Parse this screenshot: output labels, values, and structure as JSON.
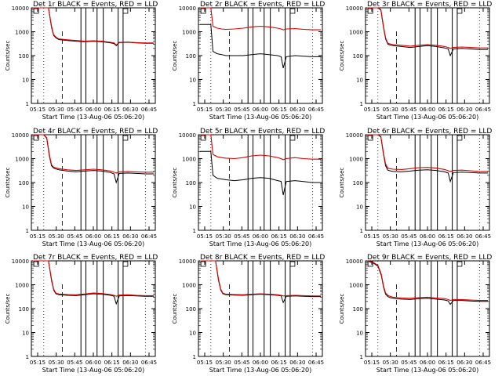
{
  "colors": {
    "events": "#000000",
    "lld": "#dd0000",
    "background": "#ffffff"
  },
  "ylabel": "Counts/sec",
  "xlabel": "Start Time (13-Aug-06 05:06:20)",
  "chart_data": [
    {
      "type": "line",
      "title": "Det 1r BLACK = Events, RED = LLD",
      "xlabel": "Start Time (13-Aug-06 05:06:20)",
      "ylabel": "Counts/sec",
      "yscale": "log",
      "ylim": [
        1,
        10000
      ],
      "xtick_labels": [
        "05:15",
        "05:30",
        "05:45",
        "06:00",
        "06:15",
        "06:30",
        "06:45"
      ],
      "ytick_labels": [
        "1",
        "10",
        "100",
        "1000",
        "10000"
      ],
      "series": [
        {
          "name": "Events",
          "x": [
            4.0,
            7.2,
            7.6,
            8.3,
            8.8,
            9.3,
            10.0,
            12.0,
            14.0,
            16.0,
            18.0,
            20.0,
            22.0,
            22.8,
            23.3,
            24.0,
            26.0,
            28.0,
            30.0,
            32.0
          ],
          "y": [
            10000,
            10000,
            10000,
            1500,
            700,
            560,
            470,
            430,
            400,
            380,
            400,
            380,
            340,
            320,
            260,
            350,
            360,
            340,
            330,
            330
          ]
        },
        {
          "name": "LLD",
          "x": [
            4.0,
            7.2,
            7.6,
            8.3,
            8.8,
            9.3,
            10.0,
            12.0,
            14.0,
            16.0,
            18.0,
            20.0,
            22.0,
            22.8,
            23.3,
            24.0,
            26.0,
            28.0,
            30.0,
            32.0
          ],
          "y": [
            10000,
            10000,
            10000,
            1700,
            750,
            600,
            500,
            460,
            430,
            400,
            420,
            400,
            360,
            340,
            280,
            360,
            370,
            350,
            340,
            340
          ]
        }
      ]
    },
    {
      "type": "line",
      "title": "Det 2r BLACK = Events, RED = LLD",
      "xlabel": "Start Time (13-Aug-06 05:06:20)",
      "ylabel": "Counts/sec",
      "yscale": "log",
      "ylim": [
        1,
        10000
      ],
      "xtick_labels": [
        "05:15",
        "05:30",
        "05:45",
        "06:00",
        "06:15",
        "06:30",
        "06:45"
      ],
      "ytick_labels": [
        "1",
        "10",
        "100",
        "1000",
        "10000"
      ],
      "series": [
        {
          "name": "Events",
          "x": [
            4.0,
            6.5,
            7.0,
            8.0,
            9.0,
            10.0,
            12.0,
            14.0,
            16.0,
            18.0,
            20.0,
            22.0,
            22.8,
            23.3,
            24.0,
            26.0,
            28.0,
            30.0,
            32.0
          ],
          "y": [
            2000,
            2000,
            150,
            120,
            110,
            100,
            100,
            100,
            110,
            120,
            110,
            100,
            90,
            30,
            90,
            100,
            95,
            90,
            90
          ]
        },
        {
          "name": "LLD",
          "x": [
            4.0,
            6.5,
            7.0,
            8.0,
            9.0,
            10.0,
            12.0,
            14.0,
            16.0,
            18.0,
            20.0,
            22.0,
            22.8,
            23.3,
            24.0,
            26.0,
            28.0,
            30.0,
            32.0
          ],
          "y": [
            10000,
            10000,
            1700,
            1400,
            1300,
            1250,
            1300,
            1400,
            1600,
            1700,
            1600,
            1400,
            1300,
            1200,
            1300,
            1350,
            1250,
            1200,
            1200
          ]
        }
      ]
    },
    {
      "type": "line",
      "title": "Det 3r BLACK = Events, RED = LLD",
      "xlabel": "Start Time (13-Aug-06 05:06:20)",
      "ylabel": "Counts/sec",
      "yscale": "log",
      "ylim": [
        1,
        10000
      ],
      "xtick_labels": [
        "05:15",
        "05:30",
        "05:45",
        "06:00",
        "06:15",
        "06:30",
        "06:45"
      ],
      "ytick_labels": [
        "1",
        "10",
        "100",
        "1000",
        "10000"
      ],
      "series": [
        {
          "name": "Events",
          "x": [
            4.0,
            6.5,
            7.2,
            7.8,
            8.3,
            8.8,
            9.3,
            10.0,
            12.0,
            14.0,
            16.0,
            18.0,
            20.0,
            22.0,
            22.8,
            23.3,
            24.0,
            26.0,
            28.0,
            30.0,
            32.0
          ],
          "y": [
            10000,
            10000,
            8000,
            1500,
            500,
            300,
            280,
            260,
            240,
            220,
            240,
            260,
            240,
            210,
            190,
            100,
            190,
            200,
            190,
            180,
            180
          ]
        },
        {
          "name": "LLD",
          "x": [
            4.0,
            6.5,
            7.2,
            7.8,
            8.3,
            8.8,
            9.3,
            10.0,
            12.0,
            14.0,
            16.0,
            18.0,
            20.0,
            22.0,
            22.8,
            23.3,
            24.0,
            26.0,
            28.0,
            30.0,
            32.0
          ],
          "y": [
            10000,
            10000,
            8500,
            1700,
            550,
            330,
            310,
            290,
            270,
            250,
            270,
            290,
            270,
            240,
            220,
            200,
            220,
            230,
            220,
            210,
            210
          ]
        }
      ]
    },
    {
      "type": "line",
      "title": "Det 4r BLACK = Events, RED = LLD",
      "xlabel": "Start Time (13-Aug-06 05:06:20)",
      "ylabel": "Counts/sec",
      "yscale": "log",
      "ylim": [
        1,
        10000
      ],
      "xtick_labels": [
        "05:15",
        "05:30",
        "05:45",
        "06:00",
        "06:15",
        "06:30",
        "06:45"
      ],
      "ytick_labels": [
        "1",
        "10",
        "100",
        "1000",
        "10000"
      ],
      "series": [
        {
          "name": "Events",
          "x": [
            4.0,
            6.5,
            7.2,
            7.8,
            8.3,
            8.8,
            9.3,
            10.0,
            12.0,
            14.0,
            16.0,
            18.0,
            20.0,
            22.0,
            22.8,
            23.3,
            24.0,
            26.0,
            28.0,
            30.0,
            32.0
          ],
          "y": [
            10000,
            10000,
            7000,
            1300,
            500,
            400,
            370,
            340,
            300,
            280,
            300,
            320,
            300,
            260,
            230,
            100,
            240,
            250,
            240,
            230,
            230
          ]
        },
        {
          "name": "LLD",
          "x": [
            4.0,
            6.5,
            7.2,
            7.8,
            8.3,
            8.8,
            9.3,
            10.0,
            12.0,
            14.0,
            16.0,
            18.0,
            20.0,
            22.0,
            22.8,
            23.3,
            24.0,
            26.0,
            28.0,
            30.0,
            32.0
          ],
          "y": [
            10000,
            10000,
            7500,
            1500,
            550,
            440,
            410,
            380,
            340,
            320,
            340,
            360,
            340,
            300,
            270,
            250,
            280,
            290,
            280,
            270,
            270
          ]
        }
      ]
    },
    {
      "type": "line",
      "title": "Det 5r BLACK = Events, RED = LLD",
      "xlabel": "Start Time (13-Aug-06 05:06:20)",
      "ylabel": "Counts/sec",
      "yscale": "log",
      "ylim": [
        1,
        10000
      ],
      "xtick_labels": [
        "05:15",
        "05:30",
        "05:45",
        "06:00",
        "06:15",
        "06:30",
        "06:45"
      ],
      "ytick_labels": [
        "1",
        "10",
        "100",
        "1000",
        "10000"
      ],
      "series": [
        {
          "name": "Events",
          "x": [
            4.0,
            6.5,
            7.0,
            8.0,
            9.0,
            10.0,
            12.0,
            14.0,
            16.0,
            18.0,
            20.0,
            22.0,
            22.8,
            23.3,
            24.0,
            26.0,
            28.0,
            30.0,
            32.0
          ],
          "y": [
            2000,
            2000,
            200,
            150,
            140,
            130,
            120,
            130,
            150,
            160,
            150,
            120,
            110,
            30,
            110,
            120,
            110,
            100,
            100
          ]
        },
        {
          "name": "LLD",
          "x": [
            4.0,
            6.5,
            7.0,
            8.0,
            9.0,
            10.0,
            12.0,
            14.0,
            16.0,
            18.0,
            20.0,
            22.0,
            22.8,
            23.3,
            24.0,
            26.0,
            28.0,
            30.0,
            32.0
          ],
          "y": [
            10000,
            10000,
            1500,
            1200,
            1100,
            1050,
            1000,
            1100,
            1300,
            1400,
            1300,
            1100,
            1000,
            900,
            1000,
            1100,
            1000,
            950,
            950
          ]
        }
      ]
    },
    {
      "type": "line",
      "title": "Det 6r BLACK = Events, RED = LLD",
      "xlabel": "Start Time (13-Aug-06 05:06:20)",
      "ylabel": "Counts/sec",
      "yscale": "log",
      "ylim": [
        1,
        10000
      ],
      "xtick_labels": [
        "05:15",
        "05:30",
        "05:45",
        "06:00",
        "06:15",
        "06:30",
        "06:45"
      ],
      "ytick_labels": [
        "1",
        "10",
        "100",
        "1000",
        "10000"
      ],
      "series": [
        {
          "name": "Events",
          "x": [
            4.0,
            6.5,
            7.2,
            7.8,
            8.3,
            8.8,
            9.3,
            10.0,
            12.0,
            14.0,
            16.0,
            18.0,
            20.0,
            22.0,
            22.8,
            23.3,
            24.0,
            26.0,
            28.0,
            30.0,
            32.0
          ],
          "y": [
            10000,
            10000,
            8000,
            1500,
            500,
            330,
            310,
            290,
            280,
            300,
            330,
            340,
            320,
            280,
            250,
            110,
            260,
            270,
            260,
            250,
            250
          ]
        },
        {
          "name": "LLD",
          "x": [
            4.0,
            6.5,
            7.2,
            7.8,
            8.3,
            8.8,
            9.3,
            10.0,
            12.0,
            14.0,
            16.0,
            18.0,
            20.0,
            22.0,
            22.8,
            23.3,
            24.0,
            26.0,
            28.0,
            30.0,
            32.0
          ],
          "y": [
            10000,
            10000,
            8500,
            1700,
            600,
            400,
            380,
            360,
            350,
            380,
            420,
            430,
            400,
            350,
            310,
            290,
            320,
            330,
            310,
            290,
            290
          ]
        }
      ]
    },
    {
      "type": "line",
      "title": "Det 7r BLACK = Events, RED = LLD",
      "xlabel": "Start Time (13-Aug-06 05:06:20)",
      "ylabel": "Counts/sec",
      "yscale": "log",
      "ylim": [
        1,
        10000
      ],
      "xtick_labels": [
        "05:15",
        "05:30",
        "05:45",
        "06:00",
        "06:15",
        "06:30",
        "06:45"
      ],
      "ytick_labels": [
        "1",
        "10",
        "100",
        "1000",
        "10000"
      ],
      "series": [
        {
          "name": "Events",
          "x": [
            4.0,
            7.2,
            7.6,
            8.3,
            8.8,
            9.3,
            10.0,
            12.0,
            14.0,
            16.0,
            18.0,
            20.0,
            22.0,
            22.8,
            23.3,
            24.0,
            26.0,
            28.0,
            30.0,
            32.0
          ],
          "y": [
            10000,
            10000,
            10000,
            1500,
            600,
            420,
            380,
            360,
            350,
            380,
            420,
            400,
            360,
            330,
            160,
            340,
            350,
            340,
            330,
            330
          ]
        },
        {
          "name": "LLD",
          "x": [
            4.0,
            7.2,
            7.6,
            8.3,
            8.8,
            9.3,
            10.0,
            12.0,
            14.0,
            16.0,
            18.0,
            20.0,
            22.0,
            22.8,
            23.3,
            24.0,
            26.0,
            28.0,
            30.0,
            32.0
          ],
          "y": [
            10000,
            10000,
            10000,
            1700,
            650,
            450,
            410,
            390,
            380,
            410,
            450,
            430,
            390,
            360,
            330,
            370,
            380,
            360,
            350,
            350
          ]
        }
      ]
    },
    {
      "type": "line",
      "title": "Det 8r BLACK = Events, RED = LLD",
      "xlabel": "Start Time (13-Aug-06 05:06:20)",
      "ylabel": "Counts/sec",
      "yscale": "log",
      "ylim": [
        1,
        10000
      ],
      "xtick_labels": [
        "05:15",
        "05:30",
        "05:45",
        "06:00",
        "06:15",
        "06:30",
        "06:45"
      ],
      "ytick_labels": [
        "1",
        "10",
        "100",
        "1000",
        "10000"
      ],
      "series": [
        {
          "name": "Events",
          "x": [
            4.0,
            7.2,
            7.6,
            8.3,
            8.8,
            9.3,
            10.0,
            12.0,
            14.0,
            16.0,
            18.0,
            20.0,
            22.0,
            22.8,
            23.3,
            24.0,
            26.0,
            28.0,
            30.0,
            32.0
          ],
          "y": [
            10000,
            10000,
            10000,
            1500,
            600,
            420,
            380,
            370,
            360,
            380,
            400,
            380,
            360,
            340,
            180,
            330,
            340,
            330,
            320,
            320
          ]
        },
        {
          "name": "LLD",
          "x": [
            4.0,
            7.2,
            7.6,
            8.3,
            8.8,
            9.3,
            10.0,
            12.0,
            14.0,
            16.0,
            18.0,
            20.0,
            22.0,
            22.8,
            23.3,
            24.0,
            26.0,
            28.0,
            30.0,
            32.0
          ],
          "y": [
            10000,
            10000,
            10000,
            1700,
            650,
            450,
            400,
            390,
            380,
            400,
            420,
            400,
            380,
            360,
            340,
            350,
            360,
            350,
            340,
            340
          ]
        }
      ]
    },
    {
      "type": "line",
      "title": "Det 9r BLACK = Events, RED = LLD",
      "xlabel": "Start Time (13-Aug-06 05:06:20)",
      "ylabel": "Counts/sec",
      "yscale": "log",
      "ylim": [
        1,
        10000
      ],
      "xtick_labels": [
        "05:15",
        "05:30",
        "05:45",
        "06:00",
        "06:15",
        "06:30",
        "06:45"
      ],
      "ytick_labels": [
        "1",
        "10",
        "100",
        "1000",
        "10000"
      ],
      "series": [
        {
          "name": "Events",
          "x": [
            4.0,
            5.5,
            6.5,
            7.3,
            7.8,
            8.3,
            8.8,
            9.3,
            10.0,
            12.0,
            14.0,
            16.0,
            18.0,
            20.0,
            22.0,
            22.8,
            23.3,
            24.0,
            26.0,
            28.0,
            30.0,
            32.0
          ],
          "y": [
            10000,
            8000,
            6000,
            2500,
            800,
            400,
            320,
            290,
            270,
            250,
            240,
            260,
            270,
            250,
            230,
            210,
            150,
            220,
            220,
            210,
            200,
            200
          ]
        },
        {
          "name": "LLD",
          "x": [
            4.0,
            5.5,
            6.5,
            7.3,
            7.8,
            8.3,
            8.8,
            9.3,
            10.0,
            12.0,
            14.0,
            16.0,
            18.0,
            20.0,
            22.0,
            22.8,
            23.3,
            24.0,
            26.0,
            28.0,
            30.0,
            32.0
          ],
          "y": [
            10000,
            8500,
            6500,
            2800,
            900,
            450,
            360,
            330,
            300,
            280,
            270,
            290,
            300,
            280,
            260,
            240,
            220,
            240,
            240,
            230,
            220,
            220
          ]
        }
      ]
    }
  ]
}
